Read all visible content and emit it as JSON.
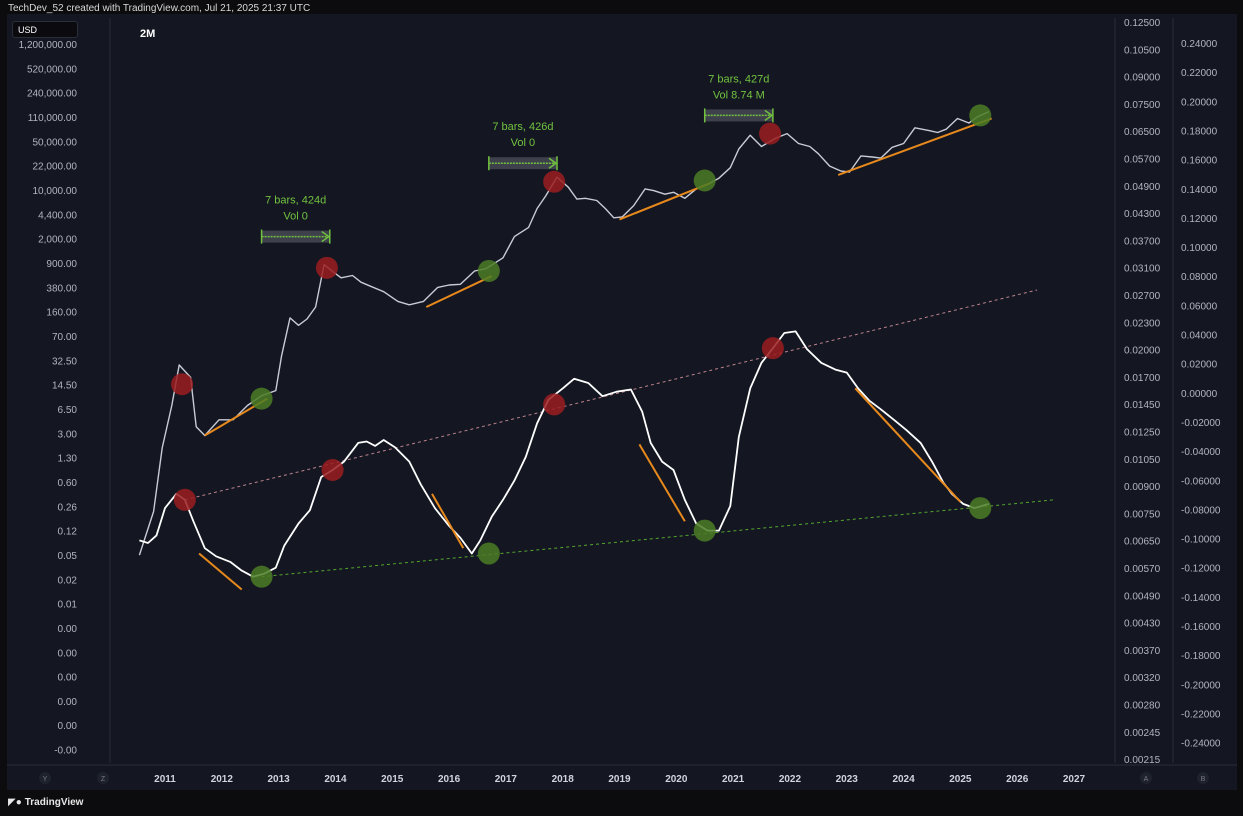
{
  "header": {
    "attribution": "TechDev_52 created with TradingView.com, Jul 21, 2025 21:37 UTC"
  },
  "toolbar": {
    "currency": "USD",
    "interval": "2M"
  },
  "footer": {
    "brand": "TradingView"
  },
  "colors": {
    "background": "#141722",
    "price_line": "#c9ccd6",
    "oscillator_line": "#ffffff",
    "top_marker": "#9b1d20",
    "bottom_marker": "#4b7d25",
    "trend_segment": "#e8891c",
    "support_line": "#5fbf30",
    "resistance_line": "#d9969f",
    "annotation_text": "#72c23f"
  },
  "chart_data": {
    "type": "line",
    "x_axis": {
      "ticks": [
        "2011",
        "2012",
        "2013",
        "2014",
        "2015",
        "2016",
        "2017",
        "2018",
        "2019",
        "2020",
        "2021",
        "2022",
        "2023",
        "2024",
        "2025",
        "2026",
        "2027"
      ]
    },
    "axis_buttons": {
      "left": [
        "Y",
        "Z"
      ],
      "right": [
        "A",
        "B"
      ]
    },
    "left_axis": {
      "scale": "log",
      "labels": [
        "1,200,000.00",
        "520,000.00",
        "240,000.00",
        "110,000.00",
        "50,000.00",
        "22,000.00",
        "10,000.00",
        "4,400.00",
        "2,000.00",
        "900.00",
        "380.00",
        "160.00",
        "70.00",
        "32.50",
        "14.50",
        "6.50",
        "3.00",
        "1.30",
        "0.60",
        "0.26",
        "0.12",
        "0.05",
        "0.02",
        "0.01",
        "0.00",
        "0.00",
        "0.00",
        "0.00",
        "0.00",
        "-0.00"
      ]
    },
    "right_axis_1": {
      "labels": [
        "0.12500",
        "0.10500",
        "0.09000",
        "0.07500",
        "0.06500",
        "0.05700",
        "0.04900",
        "0.04300",
        "0.03700",
        "0.03100",
        "0.02700",
        "0.02300",
        "0.02000",
        "0.01700",
        "0.01450",
        "0.01250",
        "0.01050",
        "0.00900",
        "0.00750",
        "0.00650",
        "0.00570",
        "0.00490",
        "0.00430",
        "0.00370",
        "0.00320",
        "0.00280",
        "0.00245",
        "0.00215"
      ]
    },
    "right_axis_2": {
      "labels": [
        "0.24000",
        "0.22000",
        "0.20000",
        "0.18000",
        "0.16000",
        "0.14000",
        "0.12000",
        "0.10000",
        "0.08000",
        "0.06000",
        "0.04000",
        "0.02000",
        "0.00000",
        "-0.02000",
        "-0.04000",
        "-0.06000",
        "-0.08000",
        "-0.10000",
        "-0.12000",
        "-0.14000",
        "-0.16000",
        "-0.18000",
        "-0.20000",
        "-0.22000",
        "-0.24000"
      ]
    },
    "series": [
      {
        "name": "",
        "scale": "log",
        "points": [
          [
            2010.55,
            0.06
          ],
          [
            2010.8,
            0.25
          ],
          [
            2010.95,
            2
          ],
          [
            2011.12,
            8
          ],
          [
            2011.25,
            30
          ],
          [
            2011.45,
            20
          ],
          [
            2011.55,
            4
          ],
          [
            2011.7,
            3
          ],
          [
            2011.95,
            5
          ],
          [
            2012.2,
            5
          ],
          [
            2012.45,
            8
          ],
          [
            2012.7,
            11
          ],
          [
            2012.95,
            13
          ],
          [
            2013.05,
            40
          ],
          [
            2013.2,
            140
          ],
          [
            2013.35,
            110
          ],
          [
            2013.5,
            135
          ],
          [
            2013.65,
            200
          ],
          [
            2013.8,
            800
          ],
          [
            2013.95,
            640
          ],
          [
            2014.1,
            520
          ],
          [
            2014.3,
            560
          ],
          [
            2014.45,
            450
          ],
          [
            2014.6,
            400
          ],
          [
            2014.85,
            330
          ],
          [
            2015.1,
            240
          ],
          [
            2015.3,
            215
          ],
          [
            2015.55,
            240
          ],
          [
            2015.8,
            380
          ],
          [
            2016.0,
            410
          ],
          [
            2016.2,
            420
          ],
          [
            2016.45,
            650
          ],
          [
            2016.65,
            700
          ],
          [
            2016.95,
            1000
          ],
          [
            2017.15,
            2000
          ],
          [
            2017.4,
            2700
          ],
          [
            2017.55,
            5000
          ],
          [
            2017.7,
            7500
          ],
          [
            2017.9,
            14000
          ],
          [
            2018.1,
            10000
          ],
          [
            2018.25,
            6800
          ],
          [
            2018.4,
            7000
          ],
          [
            2018.6,
            6500
          ],
          [
            2018.75,
            5000
          ],
          [
            2018.9,
            3700
          ],
          [
            2019.05,
            3800
          ],
          [
            2019.25,
            5500
          ],
          [
            2019.45,
            9500
          ],
          [
            2019.6,
            9000
          ],
          [
            2019.8,
            8000
          ],
          [
            2019.95,
            8500
          ],
          [
            2020.15,
            7000
          ],
          [
            2020.35,
            9500
          ],
          [
            2020.55,
            11000
          ],
          [
            2020.75,
            13500
          ],
          [
            2020.95,
            19000
          ],
          [
            2021.1,
            35000
          ],
          [
            2021.3,
            55000
          ],
          [
            2021.5,
            38000
          ],
          [
            2021.75,
            50000
          ],
          [
            2021.95,
            58000
          ],
          [
            2022.15,
            42000
          ],
          [
            2022.35,
            38000
          ],
          [
            2022.5,
            30000
          ],
          [
            2022.7,
            20000
          ],
          [
            2022.9,
            17000
          ],
          [
            2023.05,
            16500
          ],
          [
            2023.25,
            28000
          ],
          [
            2023.45,
            27000
          ],
          [
            2023.6,
            26000
          ],
          [
            2023.8,
            37000
          ],
          [
            2024.0,
            42000
          ],
          [
            2024.2,
            70000
          ],
          [
            2024.45,
            64000
          ],
          [
            2024.6,
            60000
          ],
          [
            2024.75,
            67000
          ],
          [
            2024.95,
            95000
          ],
          [
            2025.15,
            82000
          ],
          [
            2025.3,
            100000
          ],
          [
            2025.5,
            119000
          ]
        ]
      },
      {
        "name": "",
        "scale": "right_axis_1",
        "points": [
          [
            2010.55,
            0.0072
          ],
          [
            2010.7,
            0.0071
          ],
          [
            2010.85,
            0.0074
          ],
          [
            2011.0,
            0.0086
          ],
          [
            2011.2,
            0.0093
          ],
          [
            2011.35,
            0.009
          ],
          [
            2011.5,
            0.008
          ],
          [
            2011.7,
            0.0069
          ],
          [
            2011.9,
            0.0066
          ],
          [
            2012.15,
            0.0064
          ],
          [
            2012.35,
            0.0061
          ],
          [
            2012.55,
            0.0059
          ],
          [
            2012.75,
            0.006
          ],
          [
            2012.95,
            0.0062
          ],
          [
            2013.1,
            0.007
          ],
          [
            2013.35,
            0.0079
          ],
          [
            2013.55,
            0.0085
          ],
          [
            2013.75,
            0.0102
          ],
          [
            2013.95,
            0.0106
          ],
          [
            2014.15,
            0.0111
          ],
          [
            2014.4,
            0.0123
          ],
          [
            2014.55,
            0.0124
          ],
          [
            2014.7,
            0.0121
          ],
          [
            2014.85,
            0.0125
          ],
          [
            2015.05,
            0.012
          ],
          [
            2015.3,
            0.0111
          ],
          [
            2015.5,
            0.0098
          ],
          [
            2015.75,
            0.0086
          ],
          [
            2016.0,
            0.0078
          ],
          [
            2016.2,
            0.0073
          ],
          [
            2016.4,
            0.0067
          ],
          [
            2016.55,
            0.0072
          ],
          [
            2016.75,
            0.0082
          ],
          [
            2016.95,
            0.009
          ],
          [
            2017.15,
            0.01
          ],
          [
            2017.35,
            0.0114
          ],
          [
            2017.55,
            0.0137
          ],
          [
            2017.75,
            0.0156
          ],
          [
            2018.0,
            0.0166
          ],
          [
            2018.2,
            0.0175
          ],
          [
            2018.45,
            0.0171
          ],
          [
            2018.7,
            0.0159
          ],
          [
            2018.95,
            0.0163
          ],
          [
            2019.2,
            0.0165
          ],
          [
            2019.4,
            0.0146
          ],
          [
            2019.55,
            0.0123
          ],
          [
            2019.75,
            0.0111
          ],
          [
            2019.95,
            0.0106
          ],
          [
            2020.15,
            0.009
          ],
          [
            2020.35,
            0.0079
          ],
          [
            2020.55,
            0.0076
          ],
          [
            2020.75,
            0.0076
          ],
          [
            2020.95,
            0.0087
          ],
          [
            2021.1,
            0.0127
          ],
          [
            2021.3,
            0.0166
          ],
          [
            2021.5,
            0.0191
          ],
          [
            2021.7,
            0.0207
          ],
          [
            2021.9,
            0.0225
          ],
          [
            2022.1,
            0.0227
          ],
          [
            2022.3,
            0.0206
          ],
          [
            2022.55,
            0.0191
          ],
          [
            2022.8,
            0.0184
          ],
          [
            2023.0,
            0.0181
          ],
          [
            2023.2,
            0.0166
          ],
          [
            2023.4,
            0.0155
          ],
          [
            2023.6,
            0.0148
          ],
          [
            2023.85,
            0.0139
          ],
          [
            2024.05,
            0.0132
          ],
          [
            2024.3,
            0.0123
          ],
          [
            2024.5,
            0.0111
          ],
          [
            2024.7,
            0.0099
          ],
          [
            2024.85,
            0.0093
          ],
          [
            2025.05,
            0.0088
          ],
          [
            2025.25,
            0.0086
          ],
          [
            2025.5,
            0.0088
          ]
        ]
      }
    ],
    "top_markers": [
      {
        "x": 2011.35,
        "y": 0.009,
        "scale": "right_axis_1"
      },
      {
        "x": 2013.95,
        "y": 0.0106,
        "scale": "right_axis_1"
      },
      {
        "x": 2017.85,
        "y": 0.0152,
        "scale": "right_axis_1"
      },
      {
        "x": 2021.7,
        "y": 0.0207,
        "scale": "right_axis_1"
      },
      {
        "x": 2011.3,
        "y": 16,
        "scale": "log"
      },
      {
        "x": 2013.85,
        "y": 720,
        "scale": "log"
      },
      {
        "x": 2017.85,
        "y": 12000,
        "scale": "log"
      },
      {
        "x": 2021.65,
        "y": 58000,
        "scale": "log"
      }
    ],
    "bottom_markers": [
      {
        "x": 2012.7,
        "y": 0.0059,
        "scale": "right_axis_1"
      },
      {
        "x": 2016.7,
        "y": 0.0067,
        "scale": "right_axis_1"
      },
      {
        "x": 2020.5,
        "y": 0.0076,
        "scale": "right_axis_1"
      },
      {
        "x": 2025.35,
        "y": 0.0086,
        "scale": "right_axis_1"
      },
      {
        "x": 2012.7,
        "y": 10,
        "scale": "log"
      },
      {
        "x": 2016.7,
        "y": 650,
        "scale": "log"
      },
      {
        "x": 2020.5,
        "y": 12500,
        "scale": "log"
      },
      {
        "x": 2025.35,
        "y": 105000,
        "scale": "log"
      }
    ],
    "trend_lines": [
      {
        "kind": "support",
        "style": "dashed",
        "from": [
          2012.7,
          0.0059
        ],
        "to": [
          2026.65,
          0.009
        ],
        "scale": "right_axis_1"
      },
      {
        "kind": "resistance",
        "style": "dashed",
        "from": [
          2011.35,
          0.009
        ],
        "to": [
          2026.35,
          0.0285
        ],
        "scale": "right_axis_1"
      }
    ],
    "orange_segments": [
      {
        "from": [
          2011.7,
          3
        ],
        "to": [
          2012.8,
          10
        ],
        "scale": "log"
      },
      {
        "from": [
          2015.6,
          200
        ],
        "to": [
          2016.75,
          550
        ],
        "scale": "log"
      },
      {
        "from": [
          2019.0,
          3500
        ],
        "to": [
          2020.6,
          11500
        ],
        "scale": "log"
      },
      {
        "from": [
          2022.85,
          15000
        ],
        "to": [
          2025.55,
          95000
        ],
        "scale": "log"
      },
      {
        "from": [
          2011.6,
          0.0067
        ],
        "to": [
          2012.35,
          0.0055
        ],
        "scale": "right_axis_1"
      },
      {
        "from": [
          2015.7,
          0.0093
        ],
        "to": [
          2016.25,
          0.0069
        ],
        "scale": "right_axis_1"
      },
      {
        "from": [
          2019.35,
          0.0122
        ],
        "to": [
          2020.15,
          0.008
        ],
        "scale": "right_axis_1"
      },
      {
        "from": [
          2023.15,
          0.0166
        ],
        "to": [
          2025.0,
          0.0089
        ],
        "scale": "right_axis_1"
      }
    ],
    "annotations": [
      {
        "text": [
          "7 bars, 424d",
          "Vol 0"
        ],
        "from": 2012.7,
        "to": 2013.9,
        "y": 2000,
        "scale": "log"
      },
      {
        "text": [
          "7 bars, 426d",
          "Vol 0"
        ],
        "from": 2016.7,
        "to": 2017.9,
        "y": 22000,
        "scale": "log"
      },
      {
        "text": [
          "7 bars, 427d",
          "Vol 8.74 M"
        ],
        "from": 2020.5,
        "to": 2021.7,
        "y": 105000,
        "scale": "log"
      }
    ]
  }
}
